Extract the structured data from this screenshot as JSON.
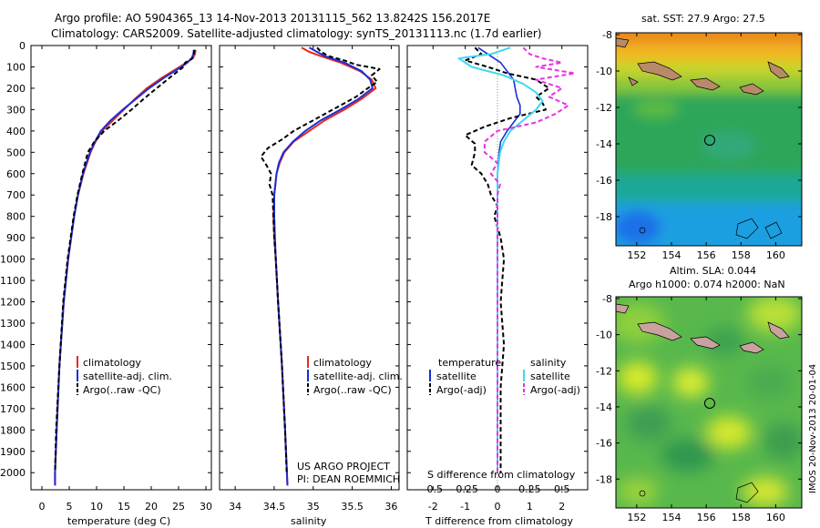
{
  "title": {
    "line1": "Argo profile: AO 5904365_13 14-Nov-2013 20131115_562 13.8242S 156.2017E",
    "line2": "Climatology: CARS2009. Satellite-adjusted climatology: synTS_20131113.nc (1.7d earlier)"
  },
  "colors": {
    "climatology": "#e8281e",
    "satellite": "#1a2fd6",
    "argo": "#000000",
    "salinity_sat": "#3ed8f0",
    "salinity_argo": "#e633e0"
  },
  "depth_axis": {
    "ticks": [
      "0",
      "100",
      "200",
      "300",
      "400",
      "500",
      "600",
      "700",
      "800",
      "900",
      "1000",
      "1100",
      "1200",
      "1300",
      "1400",
      "1500",
      "1600",
      "1700",
      "1800",
      "1900",
      "2000"
    ],
    "range": [
      0,
      2080
    ]
  },
  "chart_data": [
    {
      "type": "line",
      "id": "temperature",
      "xlabel": "temperature (deg C)",
      "xlim": [
        -2,
        31
      ],
      "xticks": [
        "0",
        "5",
        "10",
        "15",
        "20",
        "25",
        "30"
      ],
      "ylim": [
        0,
        2080
      ],
      "legend": [
        "climatology",
        "satellite-adj. clim.",
        "Argo(..raw -QC)"
      ],
      "series": [
        {
          "name": "climatology",
          "depth": [
            20,
            40,
            60,
            80,
            100,
            150,
            200,
            250,
            300,
            350,
            400,
            450,
            500,
            600,
            700,
            800,
            1000,
            1200,
            1500,
            1800,
            2000,
            2060
          ],
          "values": [
            28.1,
            28.0,
            27.6,
            26.4,
            25.2,
            22.0,
            19.2,
            17.0,
            15.0,
            13.0,
            11.0,
            9.8,
            8.9,
            7.6,
            6.6,
            5.9,
            4.8,
            4.0,
            3.2,
            2.7,
            2.4,
            2.4
          ]
        },
        {
          "name": "satellite-adj. clim.",
          "depth": [
            20,
            40,
            60,
            80,
            100,
            150,
            200,
            250,
            300,
            350,
            400,
            450,
            500,
            600,
            700,
            800,
            1000,
            1200,
            1500,
            1800,
            2000,
            2060
          ],
          "values": [
            27.8,
            27.7,
            27.4,
            26.6,
            25.5,
            22.4,
            19.6,
            17.2,
            14.8,
            12.6,
            10.8,
            9.7,
            8.8,
            7.5,
            6.6,
            5.9,
            4.8,
            4.0,
            3.2,
            2.7,
            2.4,
            2.4
          ]
        },
        {
          "name": "Argo(..raw -QC)",
          "depth": [
            20,
            40,
            60,
            80,
            100,
            150,
            200,
            250,
            300,
            350,
            400,
            450,
            500,
            550,
            600,
            700,
            800,
            1000,
            1200,
            1500,
            1800,
            2000
          ],
          "values": [
            27.9,
            27.8,
            27.5,
            26.2,
            25.9,
            23.4,
            21.0,
            18.6,
            16.4,
            14.0,
            11.4,
            9.6,
            8.4,
            7.9,
            7.4,
            6.5,
            5.8,
            4.7,
            3.9,
            3.2,
            2.6,
            2.4
          ]
        }
      ]
    },
    {
      "type": "line",
      "id": "salinity",
      "xlabel": "salinity",
      "xlim": [
        33.8,
        36.1
      ],
      "xticks": [
        "34",
        "34.5",
        "35",
        "35.5",
        "36"
      ],
      "ylim": [
        0,
        2080
      ],
      "legend": [
        "climatology",
        "satellite-adj. clim.",
        "Argo(..raw -QC)"
      ],
      "series": [
        {
          "name": "climatology",
          "depth": [
            10,
            30,
            50,
            80,
            120,
            160,
            200,
            250,
            300,
            350,
            400,
            450,
            500,
            550,
            600,
            700,
            800,
            900,
            1000,
            1200,
            1500,
            1800,
            2060
          ],
          "values": [
            34.85,
            34.95,
            35.1,
            35.35,
            35.6,
            35.75,
            35.8,
            35.62,
            35.4,
            35.15,
            34.95,
            34.75,
            34.63,
            34.57,
            34.53,
            34.5,
            34.49,
            34.5,
            34.52,
            34.55,
            34.6,
            34.64,
            34.67
          ]
        },
        {
          "name": "satellite-adj. clim.",
          "depth": [
            10,
            30,
            50,
            80,
            120,
            160,
            200,
            250,
            300,
            350,
            400,
            450,
            500,
            550,
            600,
            700,
            800,
            900,
            1000,
            1200,
            1500,
            1800,
            2060
          ],
          "values": [
            34.95,
            35.05,
            35.15,
            35.4,
            35.62,
            35.73,
            35.76,
            35.58,
            35.35,
            35.1,
            34.9,
            34.74,
            34.62,
            34.56,
            34.53,
            34.5,
            34.5,
            34.51,
            34.52,
            34.55,
            34.6,
            34.64,
            34.67
          ]
        },
        {
          "name": "Argo(..raw -QC)",
          "depth": [
            10,
            30,
            50,
            70,
            90,
            110,
            140,
            170,
            200,
            240,
            280,
            320,
            360,
            400,
            440,
            480,
            520,
            560,
            600,
            650,
            700,
            800,
            900,
            1000,
            1200,
            1500,
            1800,
            2000
          ],
          "values": [
            35.05,
            35.1,
            35.2,
            35.4,
            35.55,
            35.85,
            35.75,
            35.82,
            35.7,
            35.55,
            35.35,
            35.15,
            34.95,
            34.75,
            34.6,
            34.42,
            34.33,
            34.4,
            34.46,
            34.44,
            34.48,
            34.49,
            34.5,
            34.52,
            34.55,
            34.6,
            34.64,
            34.66
          ]
        }
      ]
    },
    {
      "type": "line",
      "id": "difference",
      "xlabel": "T difference from climatology",
      "xlabel2": "S difference from climatology",
      "xlim": [
        -2.8,
        2.8
      ],
      "xticks": [
        "-2",
        "-1",
        "0",
        "1",
        "2"
      ],
      "xticks_top": [
        "-0.5",
        "-0.25",
        "0",
        "0.25",
        "0.5"
      ],
      "ylim": [
        0,
        2080
      ],
      "legend_groups": [
        "temperature",
        "salinity"
      ],
      "legend": [
        "satellite",
        "Argo(-adj)",
        "satellite",
        "Argo(-adj)"
      ],
      "series": [
        {
          "name": "T satellite",
          "depth": [
            10,
            40,
            80,
            120,
            160,
            200,
            240,
            280,
            320,
            360,
            400,
            450,
            500,
            600,
            800,
            1000,
            1500,
            2000
          ],
          "values": [
            -0.6,
            -0.3,
            0.1,
            0.3,
            0.5,
            0.55,
            0.6,
            0.7,
            0.7,
            0.5,
            0.3,
            0.1,
            0.05,
            0.0,
            0.0,
            0.0,
            0.0,
            0.0
          ]
        },
        {
          "name": "T Argo(-adj)",
          "depth": [
            10,
            40,
            70,
            100,
            130,
            160,
            200,
            240,
            270,
            300,
            340,
            380,
            420,
            460,
            500,
            560,
            600,
            650,
            700,
            750,
            800,
            900,
            1000,
            1200,
            1400,
            1600,
            1800,
            2000
          ],
          "values": [
            -0.7,
            -0.5,
            -1.0,
            -0.3,
            0.3,
            1.2,
            1.6,
            1.2,
            1.4,
            1.5,
            0.4,
            -0.4,
            -1.0,
            -0.7,
            -0.7,
            -0.8,
            -0.5,
            -0.3,
            -0.2,
            0.0,
            -0.1,
            0.1,
            0.2,
            0.1,
            0.2,
            0.1,
            0.1,
            0.1
          ]
        },
        {
          "name": "S satellite",
          "depth": [
            10,
            40,
            60,
            100,
            140,
            180,
            220,
            260,
            300,
            350,
            400,
            450,
            500,
            600,
            700,
            800,
            1000,
            1500,
            2000
          ],
          "values": [
            0.1,
            -0.05,
            -0.3,
            -0.2,
            0.05,
            0.2,
            0.3,
            0.35,
            0.3,
            0.2,
            0.1,
            0.05,
            0.02,
            0.0,
            0.0,
            0.0,
            0.0,
            0.0,
            0.0
          ]
        },
        {
          "name": "S Argo(-adj)",
          "depth": [
            10,
            40,
            60,
            80,
            100,
            130,
            160,
            200,
            240,
            280,
            320,
            360,
            400,
            450,
            500,
            550,
            600,
            650,
            700,
            750,
            800,
            900,
            1000,
            1500,
            2000
          ],
          "values": [
            0.2,
            0.25,
            0.35,
            0.5,
            0.3,
            0.6,
            0.3,
            0.5,
            0.4,
            0.55,
            0.45,
            0.3,
            0.0,
            -0.1,
            -0.1,
            0.0,
            -0.05,
            0.02,
            0.0,
            0.0,
            0.0,
            0.0,
            0.0,
            0.0,
            0.0
          ]
        }
      ]
    },
    {
      "type": "heatmap",
      "id": "sst_map",
      "title": "sat. SST: 27.9  Argo: 27.5",
      "xticks": [
        "152",
        "154",
        "156",
        "158",
        "160"
      ],
      "yticks": [
        "-8",
        "-10",
        "-12",
        "-14",
        "-16",
        "-18"
      ],
      "xlim": [
        150.8,
        161.5
      ],
      "ylim": [
        -19.6,
        -7.9
      ],
      "marker": {
        "lon": 156.2,
        "lat": -13.8
      }
    },
    {
      "type": "heatmap",
      "id": "sla_map",
      "title": "Altim. SLA: 0.044",
      "subtitle": "Argo h1000: 0.074 h2000: NaN",
      "xticks": [
        "152",
        "154",
        "156",
        "158",
        "160"
      ],
      "yticks": [
        "-8",
        "-10",
        "-12",
        "-14",
        "-16",
        "-18"
      ],
      "xlim": [
        150.8,
        161.5
      ],
      "ylim": [
        -19.6,
        -7.9
      ],
      "marker": {
        "lon": 156.2,
        "lat": -13.8
      }
    }
  ],
  "project": {
    "line1": "US ARGO PROJECT",
    "line2": "PI: DEAN ROEMMICH"
  },
  "watermark": "IMOS 20-Nov-2013 20-01-04"
}
